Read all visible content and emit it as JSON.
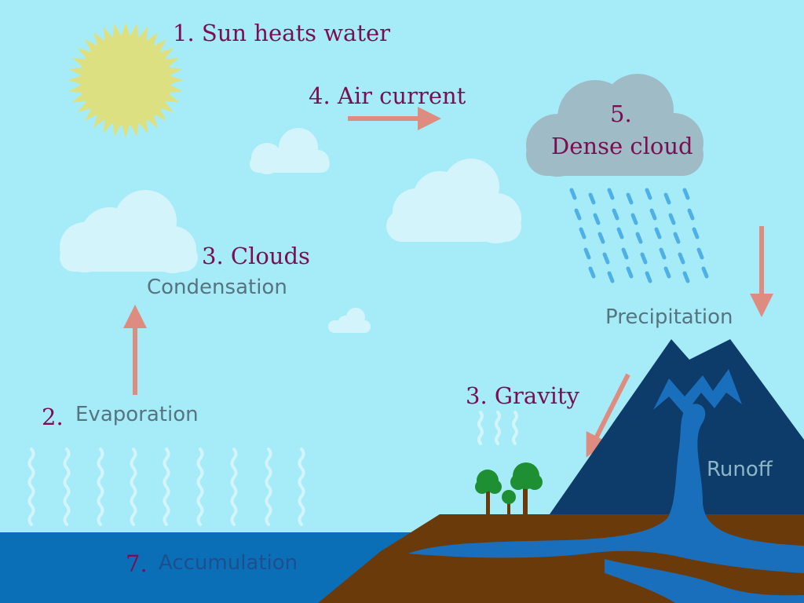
{
  "labels": {
    "sun": "1. Sun heats water",
    "air_current": "4. Air current",
    "dense_cloud_number": "5.",
    "dense_cloud": "Dense cloud",
    "clouds": "3. Clouds",
    "condensation": "Condensation",
    "precipitation": "Precipitation",
    "evaporation_number": "2.",
    "evaporation": "Evaporation",
    "gravity": "3. Gravity",
    "runoff": "Runoff",
    "accumulation_number": "7.",
    "accumulation": "Accumulation"
  },
  "icons": [
    "sun-icon",
    "cloud-icon",
    "arrow-icon",
    "rain-icon",
    "mountain-icon",
    "tree-icon",
    "vapor-icon"
  ],
  "colors": {
    "sky": "#a6ecf8",
    "sun": "#dde080",
    "light_cloud": "#d4f4fb",
    "dense_cloud": "#9fbcc6",
    "arrow": "#de8c80",
    "number_text": "#7a0e52",
    "term_text": "#567480",
    "sea": "#0b6fb8",
    "ground": "#6b3a0b",
    "mountain": "#0d3c6b",
    "river": "#1a6fbd",
    "rain": "#4fb0e8",
    "tree": "#1f8f33"
  }
}
